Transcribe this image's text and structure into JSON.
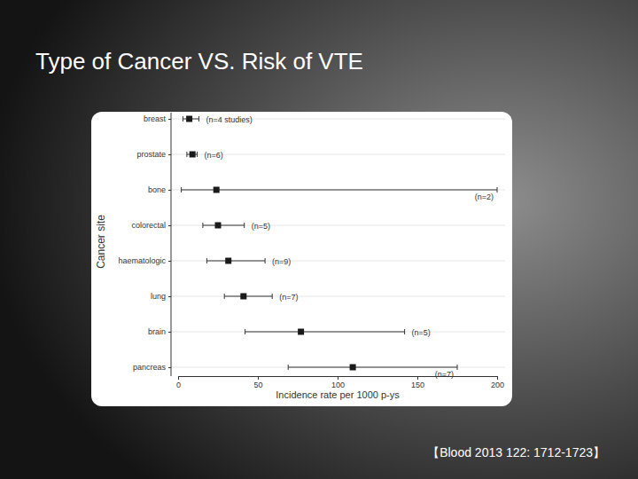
{
  "chart_data": {
    "type": "forest",
    "orientation": "horizontal",
    "title": "Type of Cancer VS. Risk of VTE",
    "source": "【Blood 2013 122: 1712-1723】",
    "x_label": "Incidence rate per 1000 p-ys",
    "y_label": "Cancer site",
    "categories": [
      "breast",
      "prostate",
      "bone",
      "colorectal",
      "haematologic",
      "lung",
      "brain",
      "pancreas"
    ],
    "values": [
      7,
      9,
      24,
      25,
      31.5,
      41,
      77,
      109.5
    ],
    "lower": [
      3,
      5.5,
      2,
      15.5,
      18,
      29,
      42,
      69
    ],
    "upper": [
      13,
      12,
      200,
      41.5,
      54.5,
      59,
      142,
      175
    ],
    "n_labels": [
      "(n=4 studies)",
      "(n=6)",
      "(n=2)",
      "(n=5)",
      "(n=9)",
      "(n=7)",
      "(n=5)",
      "(n=7)"
    ],
    "xlim": [
      0,
      200
    ],
    "xticks": [
      0,
      50,
      100,
      150,
      200
    ],
    "grid": true,
    "color": "#1a1a1a",
    "marker": "square"
  }
}
